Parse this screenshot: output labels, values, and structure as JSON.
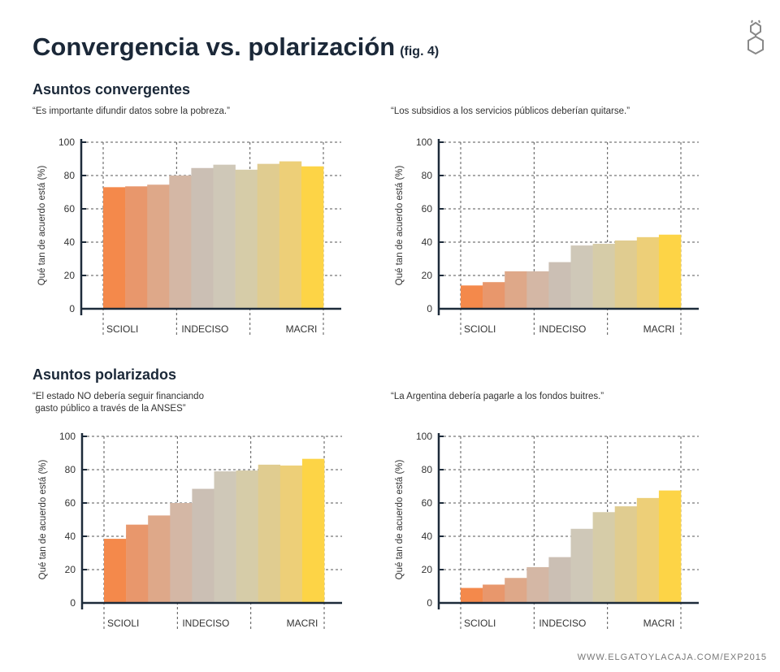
{
  "title": "Convergencia vs. polarización",
  "fig_label": "(fig. 4)",
  "sections": [
    "Asuntos convergentes",
    "Asuntos polarizados"
  ],
  "footer": "WWW.ELGATOYLACAJA.COM/EXP2015",
  "bar_colors": [
    "#F4894B",
    "#E8976C",
    "#DEA889",
    "#D4B7A5",
    "#CBBFB4",
    "#CFC8B8",
    "#D6CCA8",
    "#E0CC90",
    "#EDCF78",
    "#FDD446"
  ],
  "chart_data": [
    {
      "type": "bar",
      "title": "“Es importante difundir datos sobre la pobreza.”",
      "ylabel": "Qué tan de acuerdo está (%)",
      "xlabel": "",
      "ylim": [
        0,
        100
      ],
      "yticks": [
        "0",
        "20",
        "40",
        "60",
        "80",
        "100"
      ],
      "xtick_labels": [
        "SCIOLI",
        "INDECISO",
        "MACRI"
      ],
      "values": [
        73,
        73.5,
        74.5,
        80,
        84.5,
        86.5,
        83.5,
        87,
        88.5,
        85.5
      ],
      "grid": true
    },
    {
      "type": "bar",
      "title": "“Los subsidios a los servicios públicos deberían quitarse.”",
      "ylabel": "Qué tan de acuerdo está (%)",
      "xlabel": "",
      "ylim": [
        0,
        100
      ],
      "yticks": [
        "0",
        "20",
        "40",
        "60",
        "80",
        "100"
      ],
      "xtick_labels": [
        "SCIOLI",
        "INDECISO",
        "MACRI"
      ],
      "values": [
        14,
        16,
        22.5,
        22.5,
        28,
        38,
        39,
        41,
        43,
        44.5
      ],
      "grid": true
    },
    {
      "type": "bar",
      "title": "“El estado NO debería seguir financiando\n gasto público a través de la ANSES”",
      "ylabel": "Qué tan de acuerdo está (%)",
      "xlabel": "",
      "ylim": [
        0,
        100
      ],
      "yticks": [
        "0",
        "20",
        "40",
        "60",
        "80",
        "100"
      ],
      "xtick_labels": [
        "SCIOLI",
        "INDECISO",
        "MACRI"
      ],
      "values": [
        38.5,
        47,
        52.5,
        60,
        68.5,
        79,
        79.5,
        83,
        82.5,
        86.5
      ],
      "grid": true
    },
    {
      "type": "bar",
      "title": "“La Argentina debería pagarle a los fondos buitres.”",
      "ylabel": "Qué tan de acuerdo está (%)",
      "xlabel": "",
      "ylim": [
        0,
        100
      ],
      "yticks": [
        "0",
        "20",
        "40",
        "60",
        "80",
        "100"
      ],
      "xtick_labels": [
        "SCIOLI",
        "INDECISO",
        "MACRI"
      ],
      "values": [
        9,
        11,
        15,
        21.5,
        27.5,
        44.5,
        54.5,
        58,
        63,
        67.5
      ],
      "grid": true
    }
  ]
}
